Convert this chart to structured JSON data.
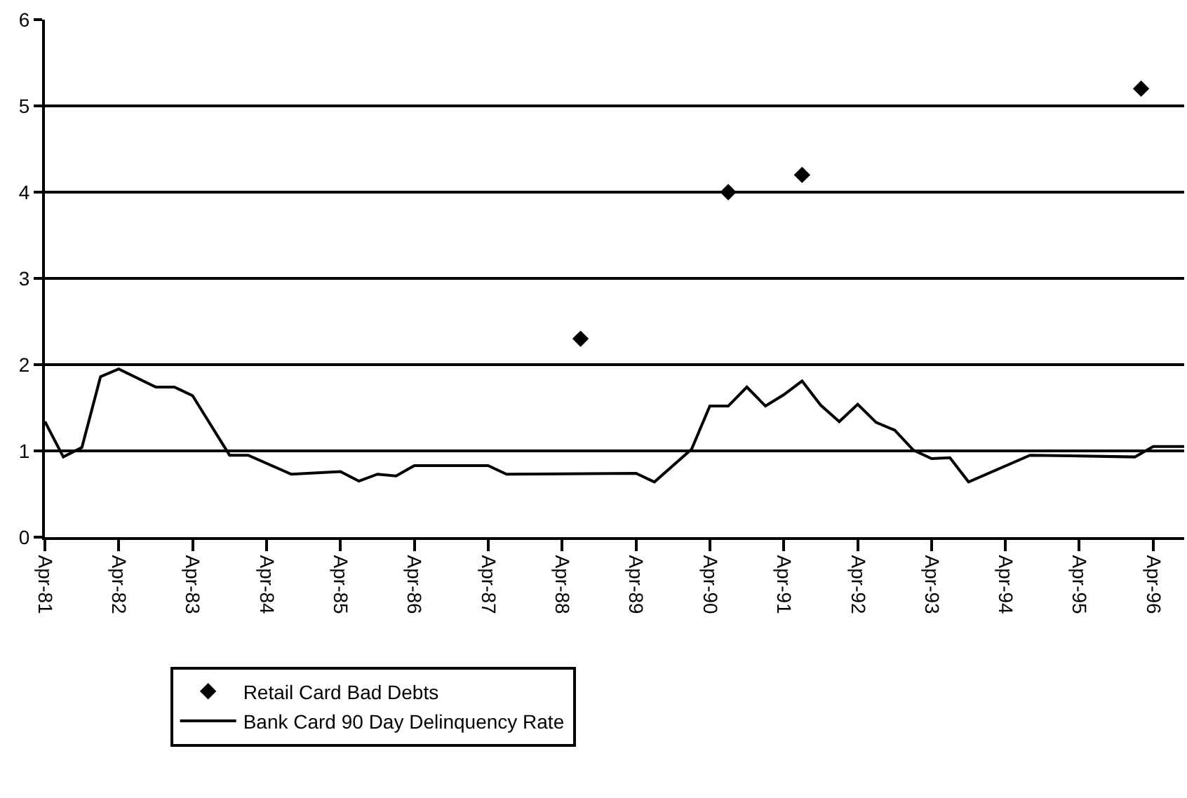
{
  "chart_data": {
    "type": "line",
    "xlim": [
      "1981-04",
      "1996-09"
    ],
    "ylim": [
      0,
      6
    ],
    "yticks": [
      0,
      1,
      2,
      3,
      4,
      5,
      6
    ],
    "xticks": [
      {
        "value": "1981-04",
        "label": "Apr-81"
      },
      {
        "value": "1982-04",
        "label": "Apr-82"
      },
      {
        "value": "1983-04",
        "label": "Apr-83"
      },
      {
        "value": "1984-04",
        "label": "Apr-84"
      },
      {
        "value": "1985-04",
        "label": "Apr-85"
      },
      {
        "value": "1986-04",
        "label": "Apr-86"
      },
      {
        "value": "1987-04",
        "label": "Apr-87"
      },
      {
        "value": "1988-04",
        "label": "Apr-88"
      },
      {
        "value": "1989-04",
        "label": "Apr-89"
      },
      {
        "value": "1990-04",
        "label": "Apr-90"
      },
      {
        "value": "1991-04",
        "label": "Apr-91"
      },
      {
        "value": "1992-04",
        "label": "Apr-92"
      },
      {
        "value": "1993-04",
        "label": "Apr-93"
      },
      {
        "value": "1994-04",
        "label": "Apr-94"
      },
      {
        "value": "1995-04",
        "label": "Apr-95"
      },
      {
        "value": "1996-04",
        "label": "Apr-96"
      }
    ],
    "grid": "y",
    "legend": "bottom left",
    "series": [
      {
        "name": "Retail Card Bad Debts",
        "type": "scatter",
        "marker": "diamond",
        "color": "#000000",
        "x": [
          "1988-07",
          "1990-07",
          "1991-07",
          "1996-02"
        ],
        "values": [
          2.3,
          4.0,
          4.2,
          5.2
        ]
      },
      {
        "name": "Bank Card 90 Day Delinquency Rate",
        "marker": "none",
        "line_style": "solid",
        "color": "#000000",
        "x": [
          "1981-04",
          "1981-07",
          "1981-10",
          "1982-01",
          "1982-04",
          "1982-10",
          "1983-01",
          "1983-04",
          "1983-10",
          "1984-01",
          "1984-08",
          "1985-04",
          "1985-07",
          "1985-10",
          "1986-01",
          "1986-04",
          "1987-04",
          "1987-07",
          "1989-04",
          "1989-07",
          "1990-01",
          "1990-04",
          "1990-07",
          "1990-10",
          "1991-01",
          "1991-04",
          "1991-07",
          "1991-10",
          "1992-01",
          "1992-04",
          "1992-07",
          "1992-10",
          "1993-01",
          "1993-04",
          "1993-07",
          "1993-10",
          "1994-08",
          "1996-01",
          "1996-04",
          "1996-09"
        ],
        "values": [
          1.34,
          0.93,
          1.04,
          1.86,
          1.95,
          1.74,
          1.74,
          1.64,
          0.95,
          0.95,
          0.73,
          0.76,
          0.65,
          0.73,
          0.71,
          0.83,
          0.83,
          0.73,
          0.74,
          0.64,
          1.02,
          1.52,
          1.52,
          1.74,
          1.52,
          1.65,
          1.81,
          1.53,
          1.34,
          1.54,
          1.33,
          1.24,
          1.01,
          0.91,
          0.92,
          0.64,
          0.95,
          0.93,
          1.05,
          1.05
        ]
      }
    ]
  }
}
